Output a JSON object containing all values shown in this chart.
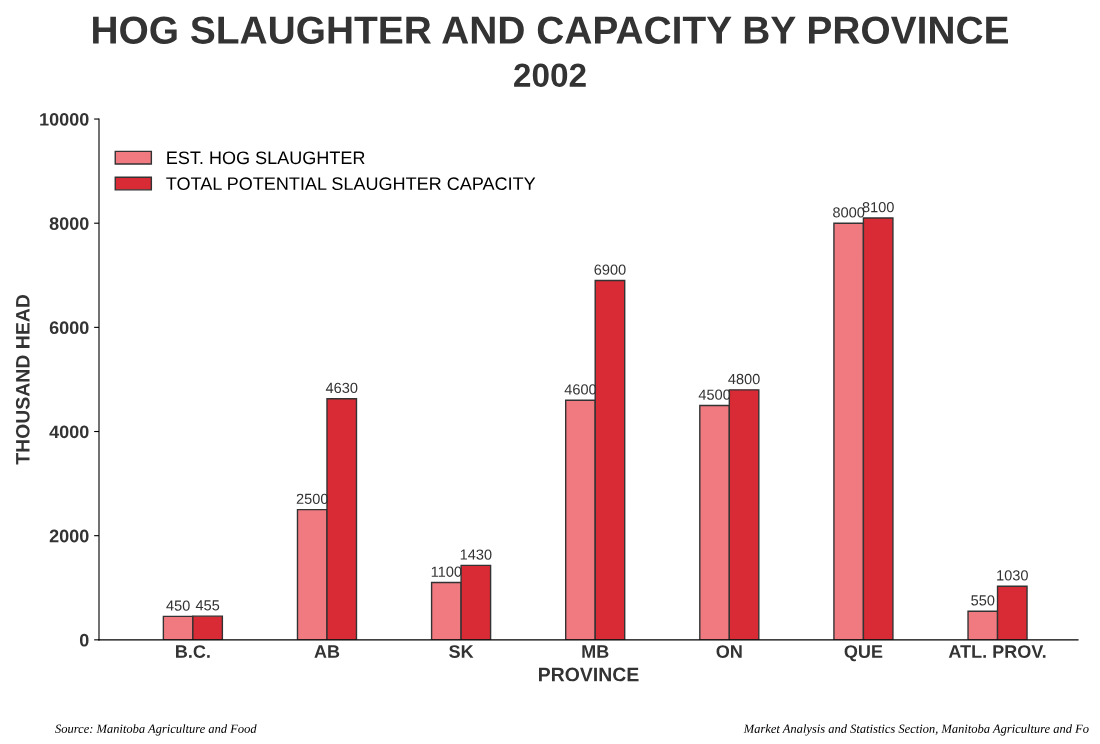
{
  "chart_data": {
    "type": "bar",
    "title": "HOG SLAUGHTER AND CAPACITY BY PROVINCE",
    "subtitle": "2002",
    "xlabel": "PROVINCE",
    "ylabel": "THOUSAND HEAD",
    "categories": [
      "B.C.",
      "AB",
      "SK",
      "MB",
      "ON",
      "QUE",
      "ATL. PROV."
    ],
    "series": [
      {
        "name": "EST. HOG SLAUGHTER",
        "color": "#f07a80",
        "values": [
          450,
          2500,
          1100,
          4600,
          4500,
          8000,
          550
        ]
      },
      {
        "name": "TOTAL POTENTIAL SLAUGHTER CAPACITY",
        "color": "#d92b35",
        "values": [
          455,
          4630,
          1430,
          6900,
          4800,
          8100,
          1030
        ]
      }
    ],
    "ylim": [
      0,
      10000
    ],
    "yticks": [
      0,
      2000,
      4000,
      6000,
      8000,
      10000
    ],
    "data_labels": true,
    "grid": false,
    "legend": "top left",
    "annotations": [
      "Source: Manitoba Agriculture and Food",
      "Market Analysis and Statistics Section, Manitoba Agriculture and Fo"
    ]
  }
}
